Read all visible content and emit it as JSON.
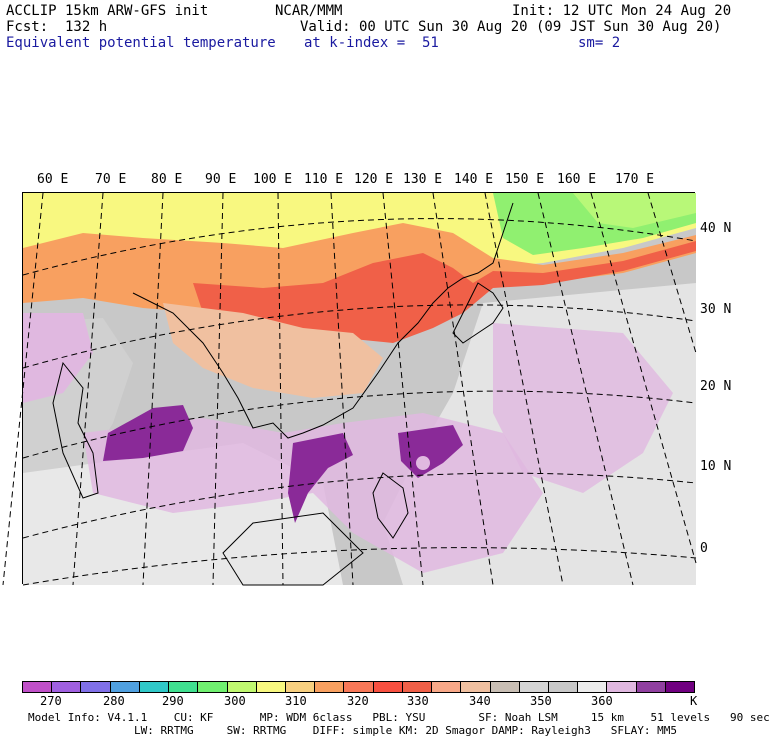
{
  "header": {
    "line1_left": "ACCLIP 15km ARW-GFS init",
    "line1_center": "NCAR/MMM",
    "line1_right": "Init: 12 UTC Mon 24 Aug 20",
    "line2_left": "Fcst:  132 h",
    "line2_right": "Valid: 00 UTC Sun 30 Aug 20 (09 JST Sun 30 Aug 20)",
    "line3_left": "Equivalent potential temperature",
    "line3_center": "at k-index =  51",
    "line3_right": "sm= 2"
  },
  "longitude_labels": [
    "60 E",
    "70 E",
    "80 E",
    "90 E",
    "100 E",
    "110 E",
    "120 E",
    "130 E",
    "140 E",
    "150 E",
    "160 E",
    "170 E"
  ],
  "latitude_labels": [
    "40 N",
    "30 N",
    "20 N",
    "10 N",
    "0"
  ],
  "colorbar": {
    "unit": "K",
    "ticks": [
      "270",
      "280",
      "290",
      "300",
      "310",
      "320",
      "330",
      "340",
      "350",
      "360"
    ],
    "colors": [
      "#c050c8",
      "#a060e0",
      "#8070e8",
      "#50a0e0",
      "#30c8c8",
      "#40e090",
      "#70f070",
      "#c0f870",
      "#f8f880",
      "#f8d080",
      "#f8a060",
      "#f87858",
      "#f85040",
      "#f06048",
      "#f8a888",
      "#f0c0a0",
      "#c8beb4",
      "#d4d4d4",
      "#c8c8c8",
      "#ececec",
      "#e0b8e0",
      "#9040a0",
      "#700080"
    ]
  },
  "footer": {
    "line1": "Model Info: V4.1.1    CU: KF       MP: WDM 6class   PBL: YSU        SF: Noah LSM     15 km    51 levels   90 sec",
    "line2": "                LW: RRTMG     SW: RRTMG    DIFF: simple KM: 2D Smagor DAMP: Rayleigh3   SFLAY: MM5"
  }
}
